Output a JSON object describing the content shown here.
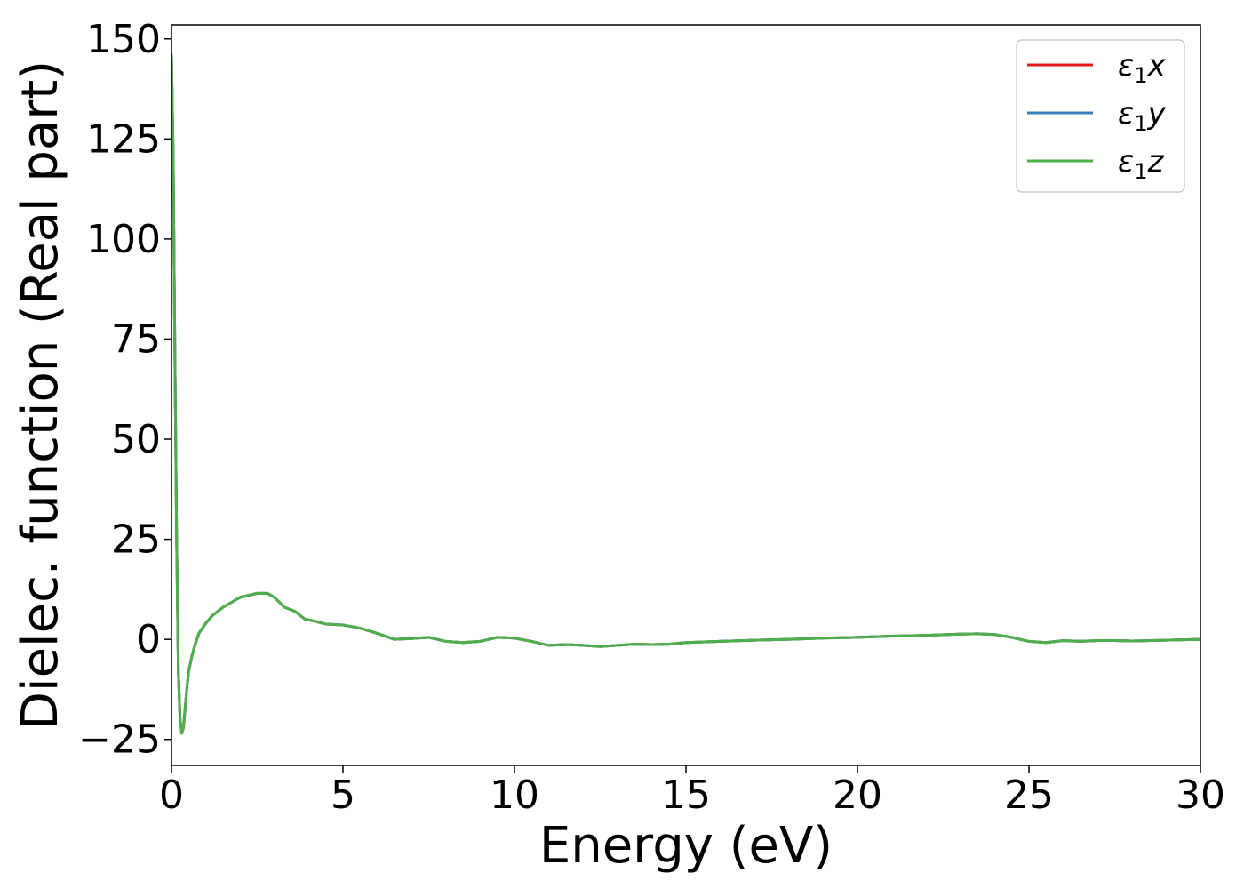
{
  "chart_data": {
    "type": "line",
    "title": "",
    "xlabel": "Energy (eV)",
    "ylabel": "Dielec. function (Real part)",
    "xlim": [
      0,
      30
    ],
    "ylim": [
      -31.5,
      153.5
    ],
    "xticks": [
      0,
      5,
      10,
      15,
      20,
      25,
      30
    ],
    "yticks": [
      -25,
      0,
      25,
      50,
      75,
      100,
      125,
      150
    ],
    "ytick_labels": [
      "−25",
      "0",
      "25",
      "50",
      "75",
      "100",
      "125",
      "150"
    ],
    "grid": false,
    "legend_position": "top-right",
    "x": [
      0.0,
      0.05,
      0.1,
      0.15,
      0.2,
      0.25,
      0.3,
      0.35,
      0.4,
      0.45,
      0.5,
      0.6,
      0.7,
      0.8,
      1.0,
      1.2,
      1.5,
      2.0,
      2.5,
      2.8,
      3.0,
      3.3,
      3.6,
      3.9,
      4.2,
      4.5,
      5.0,
      5.5,
      6.0,
      6.5,
      7.0,
      7.5,
      8.0,
      8.5,
      9.0,
      9.5,
      10.0,
      10.5,
      11.0,
      11.5,
      12.0,
      12.5,
      13.0,
      13.5,
      14.0,
      14.5,
      15.0,
      16.0,
      17.0,
      18.0,
      19.0,
      20.0,
      21.0,
      22.0,
      23.0,
      23.5,
      24.0,
      24.5,
      25.0,
      25.5,
      26.0,
      26.5,
      27.0,
      27.5,
      28.0,
      29.0,
      30.0
    ],
    "series": [
      {
        "name": "ε1x",
        "label_base": "ε",
        "label_sub": "1",
        "label_var": "x",
        "color": "#e41a1c",
        "values": [
          146,
          120,
          70,
          25,
          -8,
          -20,
          -23.5,
          -22,
          -17,
          -12,
          -8,
          -4,
          -1,
          1.5,
          4,
          6,
          8,
          10.5,
          11.5,
          11.5,
          10.5,
          8,
          7,
          5,
          4.5,
          3.8,
          3.6,
          2.8,
          1.5,
          0,
          0.2,
          0.5,
          -0.5,
          -0.8,
          -0.5,
          0.5,
          0.3,
          -0.5,
          -1.5,
          -1.3,
          -1.5,
          -1.8,
          -1.5,
          -1.2,
          -1.3,
          -1.2,
          -0.8,
          -0.5,
          -0.2,
          0,
          0.3,
          0.5,
          0.8,
          1.0,
          1.3,
          1.4,
          1.2,
          0.5,
          -0.5,
          -0.8,
          -0.3,
          -0.5,
          -0.3,
          -0.3,
          -0.4,
          -0.2,
          0
        ]
      },
      {
        "name": "ε1y",
        "label_base": "ε",
        "label_sub": "1",
        "label_var": "y",
        "color": "#377eb8",
        "values": [
          146,
          120,
          70,
          25,
          -8,
          -20,
          -23.5,
          -22,
          -17,
          -12,
          -8,
          -4,
          -1,
          1.5,
          4,
          6,
          8,
          10.5,
          11.5,
          11.5,
          10.5,
          8,
          7,
          5,
          4.5,
          3.8,
          3.6,
          2.8,
          1.5,
          0,
          0.2,
          0.5,
          -0.5,
          -0.8,
          -0.5,
          0.5,
          0.3,
          -0.5,
          -1.5,
          -1.3,
          -1.5,
          -1.8,
          -1.5,
          -1.2,
          -1.3,
          -1.2,
          -0.8,
          -0.5,
          -0.2,
          0,
          0.3,
          0.5,
          0.8,
          1.0,
          1.3,
          1.4,
          1.2,
          0.5,
          -0.5,
          -0.8,
          -0.3,
          -0.5,
          -0.3,
          -0.3,
          -0.4,
          -0.2,
          0
        ]
      },
      {
        "name": "ε1z",
        "label_base": "ε",
        "label_sub": "1",
        "label_var": "z",
        "color": "#4daf4a",
        "values": [
          146,
          120,
          70,
          25,
          -8,
          -20,
          -23.5,
          -22,
          -17,
          -12,
          -8,
          -4,
          -1,
          1.5,
          4,
          6,
          8,
          10.5,
          11.5,
          11.5,
          10.5,
          8,
          7,
          5,
          4.5,
          3.8,
          3.6,
          2.8,
          1.5,
          0,
          0.2,
          0.5,
          -0.5,
          -0.8,
          -0.5,
          0.5,
          0.3,
          -0.5,
          -1.5,
          -1.3,
          -1.5,
          -1.8,
          -1.5,
          -1.2,
          -1.3,
          -1.2,
          -0.8,
          -0.5,
          -0.2,
          0,
          0.3,
          0.5,
          0.8,
          1.0,
          1.3,
          1.4,
          1.2,
          0.5,
          -0.5,
          -0.8,
          -0.3,
          -0.5,
          -0.3,
          -0.3,
          -0.4,
          -0.2,
          0
        ]
      }
    ]
  }
}
